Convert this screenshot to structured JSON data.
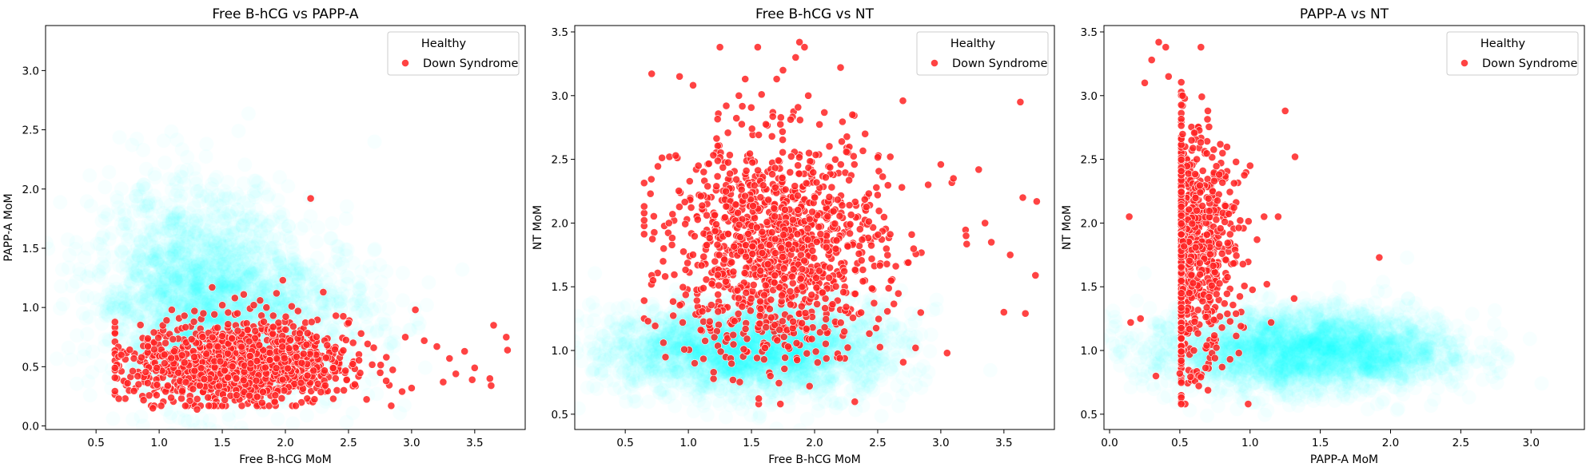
{
  "chart_data": [
    {
      "type": "scatter",
      "title": "Free B-hCG vs PAPP-A",
      "xlabel": "Free B-hCG MoM",
      "ylabel": "PAPP-A MoM",
      "xlim": [
        0.1,
        3.9
      ],
      "ylim": [
        -0.03,
        3.38
      ],
      "xticks": [
        0.5,
        1.0,
        1.5,
        2.0,
        2.5,
        3.0,
        3.5
      ],
      "yticks": [
        0.0,
        0.5,
        1.0,
        1.5,
        2.0,
        2.5,
        3.0
      ],
      "legend": {
        "position": "top-right",
        "entries": [
          "Healthy",
          "Down Syndrome"
        ]
      },
      "series": [
        {
          "name": "Healthy",
          "color": "#00ffff",
          "density_clusters": [
            {
              "x": 1.25,
              "y": 1.15,
              "sx": 0.38,
              "sy": 0.45,
              "weight": 0.55
            },
            {
              "x": 1.75,
              "y": 0.9,
              "sx": 0.5,
              "sy": 0.35,
              "weight": 0.45
            }
          ]
        },
        {
          "name": "Down Syndrome",
          "color": "#ff2222",
          "points": [
            [
              0.68,
              0.23
            ],
            [
              0.7,
              0.6
            ],
            [
              0.72,
              0.38
            ],
            [
              0.75,
              0.36
            ],
            [
              0.8,
              0.57
            ],
            [
              0.83,
              0.42
            ],
            [
              0.95,
              0.15
            ],
            [
              0.98,
              0.26
            ],
            [
              1.05,
              0.7
            ],
            [
              1.1,
              0.98
            ],
            [
              1.12,
              0.63
            ],
            [
              1.2,
              0.93
            ],
            [
              1.28,
              0.97
            ],
            [
              1.3,
              0.14
            ],
            [
              1.35,
              0.95
            ],
            [
              1.42,
              1.17
            ],
            [
              1.5,
              1.02
            ],
            [
              1.52,
              0.22
            ],
            [
              1.6,
              1.08
            ],
            [
              1.62,
              0.95
            ],
            [
              1.67,
              1.11
            ],
            [
              1.72,
              0.99
            ],
            [
              1.75,
              1.02
            ],
            [
              1.8,
              1.06
            ],
            [
              1.85,
              1.0
            ],
            [
              1.93,
              1.12
            ],
            [
              1.98,
              1.23
            ],
            [
              2.05,
              1.01
            ],
            [
              2.1,
              0.97
            ],
            [
              2.2,
              1.92
            ],
            [
              2.3,
              1.13
            ],
            [
              2.4,
              0.93
            ],
            [
              2.5,
              0.87
            ],
            [
              2.55,
              0.35
            ],
            [
              2.6,
              0.78
            ],
            [
              2.7,
              0.66
            ],
            [
              2.8,
              0.58
            ],
            [
              2.95,
              0.75
            ],
            [
              3.0,
              0.32
            ],
            [
              3.03,
              0.98
            ],
            [
              3.1,
              0.72
            ],
            [
              3.2,
              0.67
            ],
            [
              3.25,
              0.37
            ],
            [
              3.3,
              0.57
            ],
            [
              3.35,
              0.44
            ],
            [
              3.42,
              0.63
            ],
            [
              3.48,
              0.39
            ],
            [
              3.5,
              0.49
            ],
            [
              3.62,
              0.4
            ],
            [
              3.63,
              0.34
            ],
            [
              3.65,
              0.85
            ],
            [
              3.75,
              0.75
            ],
            [
              3.76,
              0.64
            ]
          ],
          "cloud": {
            "center": [
              1.65,
              0.52
            ],
            "spread": [
              0.42,
              0.17
            ],
            "approx_count": 1150
          }
        }
      ]
    },
    {
      "type": "scatter",
      "title": "Free B-hCG vs NT",
      "xlabel": "Free B-hCG MoM",
      "ylabel": "NT MoM",
      "xlim": [
        0.1,
        3.9
      ],
      "ylim": [
        0.38,
        3.55
      ],
      "xticks": [
        0.5,
        1.0,
        1.5,
        2.0,
        2.5,
        3.0,
        3.5
      ],
      "yticks": [
        0.5,
        1.0,
        1.5,
        2.0,
        2.5,
        3.0,
        3.5
      ],
      "legend": {
        "position": "top-right",
        "entries": [
          "Healthy",
          "Down Syndrome"
        ]
      },
      "series": [
        {
          "name": "Healthy",
          "color": "#00ffff",
          "density_clusters": [
            {
              "x": 1.25,
              "y": 1.0,
              "sx": 0.5,
              "sy": 0.17,
              "weight": 0.6
            },
            {
              "x": 1.85,
              "y": 1.05,
              "sx": 0.45,
              "sy": 0.2,
              "weight": 0.4
            }
          ]
        },
        {
          "name": "Down Syndrome",
          "color": "#ff2222",
          "points": [
            [
              0.68,
              1.23
            ],
            [
              0.7,
              2.23
            ],
            [
              0.72,
              1.55
            ],
            [
              0.8,
              1.7
            ],
            [
              0.85,
              2.52
            ],
            [
              0.9,
              2.53
            ],
            [
              0.93,
              3.15
            ],
            [
              1.05,
              0.9
            ],
            [
              1.08,
              2.45
            ],
            [
              1.2,
              0.83
            ],
            [
              1.25,
              3.38
            ],
            [
              1.3,
              2.92
            ],
            [
              1.4,
              3.0
            ],
            [
              1.45,
              3.13
            ],
            [
              1.55,
              3.38
            ],
            [
              1.6,
              0.93
            ],
            [
              1.65,
              0.8
            ],
            [
              1.7,
              3.13
            ],
            [
              1.75,
              3.2
            ],
            [
              1.85,
              3.3
            ],
            [
              1.88,
              3.42
            ],
            [
              1.92,
              3.38
            ],
            [
              1.95,
              3.0
            ],
            [
              2.2,
              0.94
            ],
            [
              2.3,
              2.85
            ],
            [
              2.4,
              2.7
            ],
            [
              2.5,
              2.22
            ],
            [
              2.6,
              2.52
            ],
            [
              2.7,
              2.96
            ],
            [
              2.8,
              1.02
            ],
            [
              2.9,
              2.3
            ],
            [
              3.0,
              2.46
            ],
            [
              3.05,
              0.98
            ],
            [
              3.1,
              2.35
            ],
            [
              3.2,
              1.9
            ],
            [
              3.3,
              2.42
            ],
            [
              3.35,
              2.0
            ],
            [
              3.4,
              1.85
            ],
            [
              3.5,
              1.3
            ],
            [
              3.55,
              1.75
            ],
            [
              3.63,
              2.95
            ],
            [
              3.65,
              2.2
            ],
            [
              3.67,
              1.29
            ],
            [
              3.75,
              1.59
            ],
            [
              3.76,
              2.17
            ]
          ],
          "cloud": {
            "center": [
              1.7,
              1.8
            ],
            "spread": [
              0.42,
              0.43
            ],
            "approx_count": 1150
          }
        }
      ]
    },
    {
      "type": "scatter",
      "title": "PAPP-A vs NT",
      "xlabel": "PAPP-A MoM",
      "ylabel": "NT MoM",
      "xlim": [
        -0.04,
        3.38
      ],
      "ylim": [
        0.38,
        3.55
      ],
      "xticks": [
        0.0,
        0.5,
        1.0,
        1.5,
        2.0,
        2.5,
        3.0
      ],
      "yticks": [
        0.5,
        1.0,
        1.5,
        2.0,
        2.5,
        3.0,
        3.5
      ],
      "legend": {
        "position": "top-right",
        "entries": [
          "Healthy",
          "Down Syndrome"
        ]
      },
      "series": [
        {
          "name": "Healthy",
          "color": "#00ffff",
          "density_clusters": [
            {
              "x": 1.2,
              "y": 1.0,
              "sx": 0.48,
              "sy": 0.17,
              "weight": 0.65
            },
            {
              "x": 1.8,
              "y": 1.0,
              "sx": 0.4,
              "sy": 0.15,
              "weight": 0.35
            }
          ]
        },
        {
          "name": "Down Syndrome",
          "color": "#ff2222",
          "points": [
            [
              0.14,
              2.05
            ],
            [
              0.15,
              1.22
            ],
            [
              0.22,
              1.25
            ],
            [
              0.25,
              3.1
            ],
            [
              0.3,
              3.28
            ],
            [
              0.33,
              0.8
            ],
            [
              0.35,
              3.42
            ],
            [
              0.4,
              3.38
            ],
            [
              0.42,
              3.15
            ],
            [
              0.5,
              0.82
            ],
            [
              0.52,
              3.0
            ],
            [
              0.6,
              1.0
            ],
            [
              0.65,
              3.38
            ],
            [
              0.7,
              2.88
            ],
            [
              0.75,
              0.94
            ],
            [
              0.8,
              1.18
            ],
            [
              0.9,
              2.48
            ],
            [
              0.92,
              0.98
            ],
            [
              1.0,
              2.45
            ],
            [
              1.05,
              1.87
            ],
            [
              1.1,
              2.05
            ],
            [
              1.12,
              1.52
            ],
            [
              1.15,
              1.22
            ],
            [
              1.2,
              2.05
            ],
            [
              1.25,
              2.88
            ],
            [
              1.32,
              2.52
            ],
            [
              1.92,
              1.73
            ]
          ],
          "cloud": {
            "center": [
              0.5,
              1.8
            ],
            "spread": [
              0.19,
              0.43
            ],
            "approx_count": 1150
          }
        }
      ]
    }
  ]
}
